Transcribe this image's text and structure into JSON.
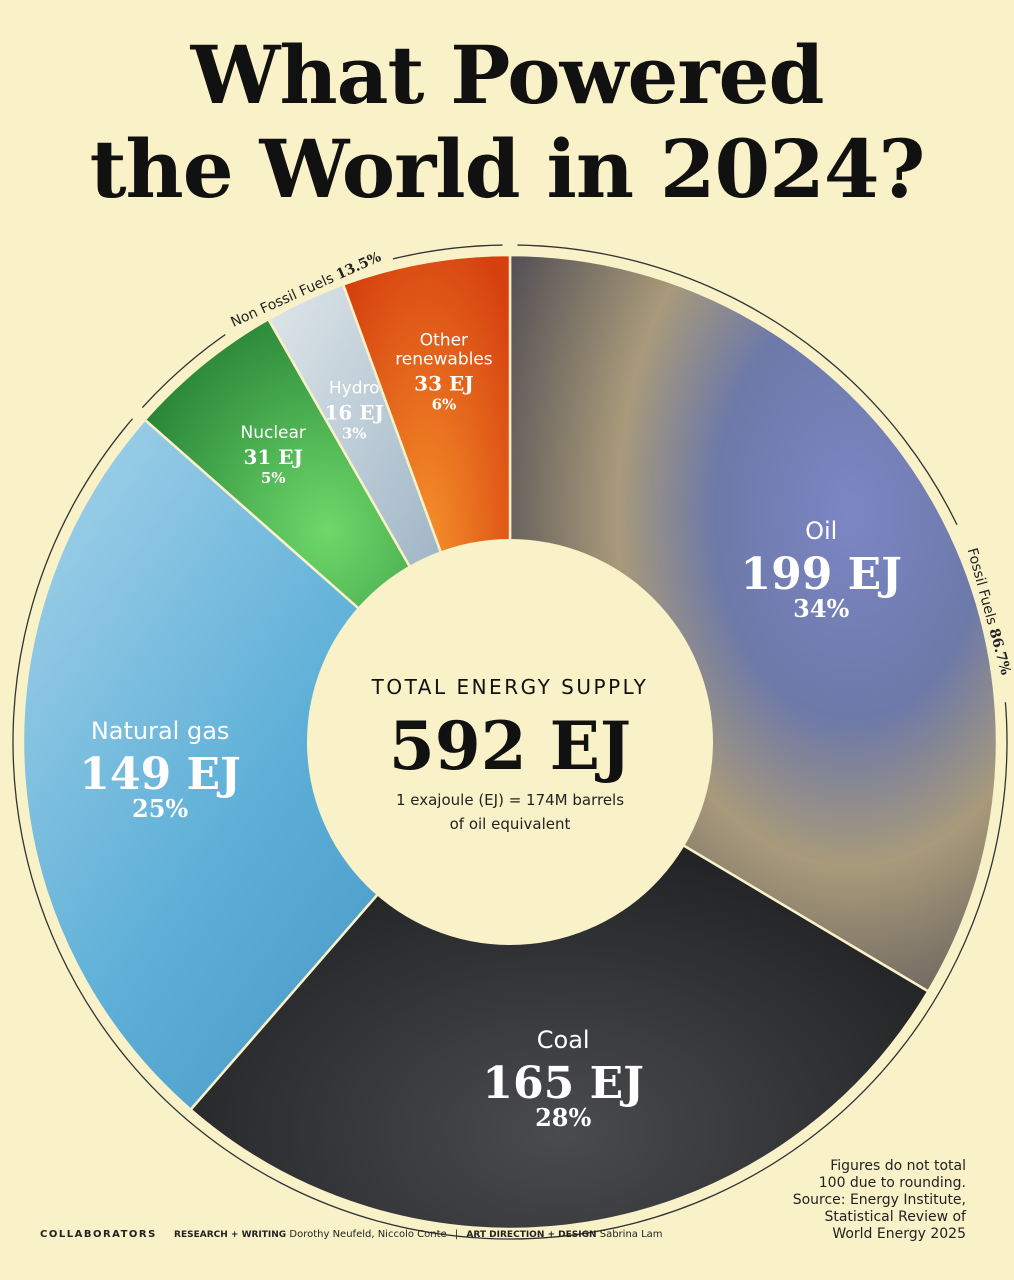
{
  "title_lines": [
    "What Powered",
    "the World in 2024?"
  ],
  "chart_data": {
    "type": "pie",
    "variant": "donut",
    "center": {
      "label": "TOTAL ENERGY SUPPLY",
      "value": "592 EJ",
      "note_line1": "1 exajoule (EJ) = 174M barrels",
      "note_line2": "of oil equivalent"
    },
    "slices": [
      {
        "name": "Oil",
        "value": 199,
        "value_label": "199 EJ",
        "pct_label": "34%",
        "color": "#8a8fb2"
      },
      {
        "name": "Coal",
        "value": 165,
        "value_label": "165 EJ",
        "pct_label": "28%",
        "color": "#2b2c2e"
      },
      {
        "name": "Natural gas",
        "value": 149,
        "value_label": "149 EJ",
        "pct_label": "25%",
        "color": "#6fb6d8"
      },
      {
        "name": "Nuclear",
        "value": 31,
        "value_label": "31 EJ",
        "pct_label": "5%",
        "color": "#2f9a3d"
      },
      {
        "name": "Hydro",
        "value": 16,
        "value_label": "16 EJ",
        "pct_label": "3%",
        "color": "#9bb6c8"
      },
      {
        "name_lines": [
          "Other",
          "renewables"
        ],
        "name": "Other renewables",
        "value": 33,
        "value_label": "33 EJ",
        "pct_label": "6%",
        "color": "#e8561a"
      }
    ],
    "groups": [
      {
        "name": "Non Fossil Fuels",
        "pct_label": "13.5%"
      },
      {
        "name": "Fossil Fuels",
        "pct_label": "86.7%"
      }
    ]
  },
  "note_lines": [
    "Figures do not total",
    "100 due to rounding.",
    "Source: Energy Institute,",
    "Statistical Review of",
    "World Energy 2025"
  ],
  "footer": {
    "collaborators": "COLLABORATORS",
    "research_role": "RESEARCH + WRITING",
    "research_names": "Dorothy Neufeld, Niccolo Conte",
    "separator": "|",
    "design_role": "ART DIRECTION + DESIGN",
    "design_names": "Sabrina Lam"
  }
}
